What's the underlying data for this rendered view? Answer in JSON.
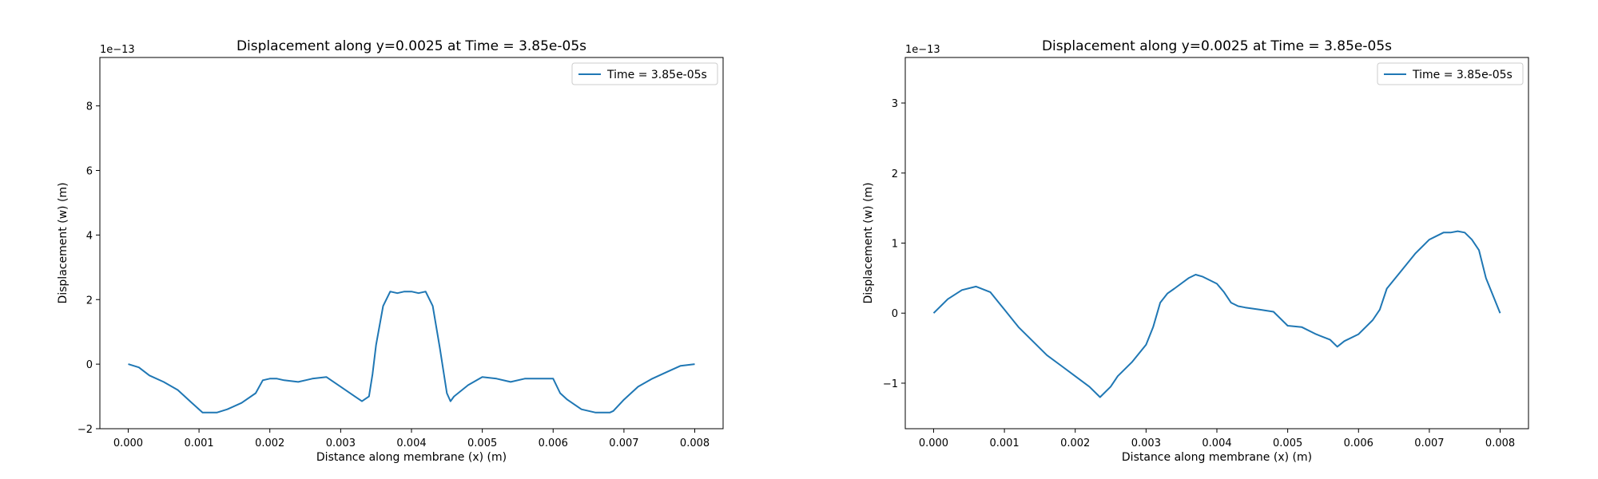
{
  "chart_data": [
    {
      "type": "line",
      "title": "Displacement along y=0.0025 at Time = 3.85e-05s",
      "xlabel": "Distance along membrane (x) (m)",
      "ylabel": "Displacement (w) (m)",
      "y_scale_label": "1e−13",
      "xlim": [
        -0.0004,
        0.0084
      ],
      "ylim": [
        -2.0,
        9.5
      ],
      "x_ticks": [
        0.0,
        0.001,
        0.002,
        0.003,
        0.004,
        0.005,
        0.006,
        0.007,
        0.008
      ],
      "x_tick_labels": [
        "0.000",
        "0.001",
        "0.002",
        "0.003",
        "0.004",
        "0.005",
        "0.006",
        "0.007",
        "0.008"
      ],
      "y_ticks": [
        -2,
        0,
        2,
        4,
        6,
        8
      ],
      "y_tick_labels": [
        "−2",
        "0",
        "2",
        "4",
        "6",
        "8"
      ],
      "grid": false,
      "legend": "top-right",
      "series": [
        {
          "name": "Time = 3.85e-05s",
          "color": "#1f77b4",
          "x": [
            0.0,
            0.00015,
            0.0003,
            0.0005,
            0.0007,
            0.0009,
            0.00105,
            0.0011,
            0.00125,
            0.0014,
            0.0016,
            0.0018,
            0.0019,
            0.002,
            0.0021,
            0.0022,
            0.0024,
            0.0026,
            0.0028,
            0.003,
            0.0032,
            0.0033,
            0.0034,
            0.00345,
            0.0035,
            0.0036,
            0.0037,
            0.0038,
            0.0039,
            0.004,
            0.0041,
            0.0042,
            0.0043,
            0.0044,
            0.0045,
            0.00455,
            0.0046,
            0.0048,
            0.005,
            0.0052,
            0.0054,
            0.0056,
            0.0058,
            0.006,
            0.0061,
            0.0062,
            0.0064,
            0.0066,
            0.0068,
            0.00685,
            0.007,
            0.0072,
            0.0074,
            0.0076,
            0.0078,
            0.008
          ],
          "y": [
            0.0,
            -0.1,
            -0.35,
            -0.55,
            -0.8,
            -1.2,
            -1.5,
            -1.5,
            -1.5,
            -1.4,
            -1.2,
            -0.9,
            -0.5,
            -0.45,
            -0.45,
            -0.5,
            -0.55,
            -0.45,
            -0.4,
            -0.7,
            -1.0,
            -1.15,
            -1.0,
            -0.3,
            0.6,
            1.8,
            2.25,
            2.2,
            2.25,
            2.25,
            2.2,
            2.25,
            1.8,
            0.5,
            -0.9,
            -1.15,
            -1.0,
            -0.65,
            -0.4,
            -0.45,
            -0.55,
            -0.45,
            -0.45,
            -0.45,
            -0.9,
            -1.1,
            -1.4,
            -1.5,
            -1.5,
            -1.45,
            -1.1,
            -0.7,
            -0.45,
            -0.25,
            -0.05,
            0.0
          ]
        }
      ]
    },
    {
      "type": "line",
      "title": "Displacement along y=0.0025 at Time = 3.85e-05s",
      "xlabel": "Distance along membrane (x) (m)",
      "ylabel": "Displacement (w) (m)",
      "y_scale_label": "1e−13",
      "xlim": [
        -0.0004,
        0.0084
      ],
      "ylim": [
        -1.65,
        3.65
      ],
      "x_ticks": [
        0.0,
        0.001,
        0.002,
        0.003,
        0.004,
        0.005,
        0.006,
        0.007,
        0.008
      ],
      "x_tick_labels": [
        "0.000",
        "0.001",
        "0.002",
        "0.003",
        "0.004",
        "0.005",
        "0.006",
        "0.007",
        "0.008"
      ],
      "y_ticks": [
        -1,
        0,
        1,
        2,
        3
      ],
      "y_tick_labels": [
        "−1",
        "0",
        "1",
        "2",
        "3"
      ],
      "grid": false,
      "legend": "top-right",
      "series": [
        {
          "name": "Time = 3.85e-05s",
          "color": "#1f77b4",
          "x": [
            0.0,
            0.0002,
            0.0004,
            0.0006,
            0.0008,
            0.001,
            0.0012,
            0.0014,
            0.0016,
            0.0018,
            0.002,
            0.0022,
            0.00235,
            0.0025,
            0.0026,
            0.0028,
            0.003,
            0.0031,
            0.0032,
            0.0033,
            0.0034,
            0.0036,
            0.0037,
            0.0038,
            0.004,
            0.0041,
            0.0042,
            0.0043,
            0.0044,
            0.0046,
            0.0048,
            0.005,
            0.0052,
            0.0054,
            0.0056,
            0.0057,
            0.0058,
            0.006,
            0.0062,
            0.0063,
            0.0064,
            0.0066,
            0.0068,
            0.007,
            0.0071,
            0.0072,
            0.0073,
            0.0074,
            0.0075,
            0.0076,
            0.0077,
            0.0078,
            0.008
          ],
          "y": [
            0.0,
            0.2,
            0.33,
            0.38,
            0.3,
            0.05,
            -0.2,
            -0.4,
            -0.6,
            -0.75,
            -0.9,
            -1.05,
            -1.2,
            -1.05,
            -0.9,
            -0.7,
            -0.45,
            -0.2,
            0.15,
            0.28,
            0.35,
            0.5,
            0.55,
            0.52,
            0.42,
            0.3,
            0.15,
            0.1,
            0.08,
            0.05,
            0.02,
            -0.18,
            -0.2,
            -0.3,
            -0.38,
            -0.48,
            -0.4,
            -0.3,
            -0.1,
            0.05,
            0.35,
            0.6,
            0.85,
            1.05,
            1.1,
            1.15,
            1.15,
            1.17,
            1.15,
            1.05,
            0.9,
            0.5,
            0.0
          ]
        }
      ]
    }
  ]
}
